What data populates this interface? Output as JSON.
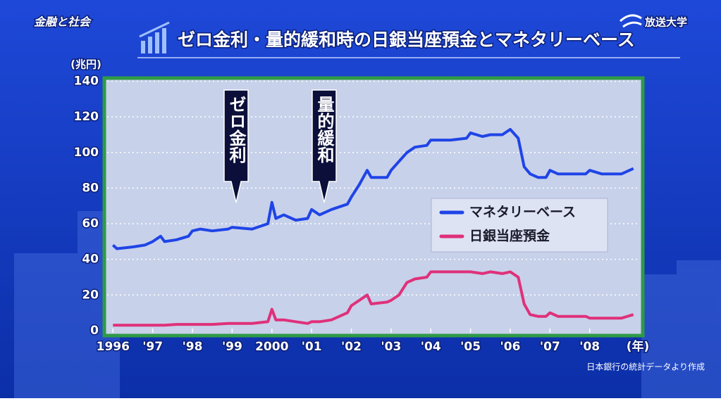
{
  "program": "金融と社会",
  "logo": "放送大学",
  "source": "日本銀行の統計データより作成",
  "chart_data": {
    "type": "line",
    "title": "ゼロ金利・量的緩和時の日銀当座預金とマネタリーベース",
    "y_label": "(兆円)",
    "x_label": "(年)",
    "annotations": [
      "ゼロ金利",
      "量的緩和"
    ],
    "x": [
      1996.0,
      1996.1,
      1996.5,
      1996.8,
      1997.0,
      1997.2,
      1997.3,
      1997.6,
      1997.9,
      1998.0,
      1998.2,
      1998.5,
      1998.9,
      1999.0,
      1999.5,
      1999.9,
      2000.0,
      2000.1,
      2000.3,
      2000.6,
      2000.9,
      2001.0,
      2001.2,
      2001.5,
      2001.9,
      2002.0,
      2002.2,
      2002.4,
      2002.5,
      2002.9,
      2003.0,
      2003.2,
      2003.4,
      2003.6,
      2003.9,
      2004.0,
      2004.5,
      2004.9,
      2005.0,
      2005.3,
      2005.5,
      2005.8,
      2006.0,
      2006.2,
      2006.35,
      2006.5,
      2006.7,
      2006.9,
      2007.0,
      2007.2,
      2007.5,
      2007.9,
      2008.0,
      2008.3,
      2008.8,
      2009.1
    ],
    "series": [
      {
        "name": "マネタリーベース",
        "color": "#1f44e6",
        "values": [
          48,
          46,
          47,
          48,
          50,
          53,
          50,
          51,
          53,
          56,
          57,
          56,
          57,
          58,
          57,
          60,
          72,
          63,
          65,
          62,
          63,
          68,
          65,
          68,
          71,
          75,
          82,
          90,
          86,
          86,
          90,
          95,
          100,
          103,
          104,
          107,
          107,
          108,
          111,
          109,
          110,
          110,
          113,
          108,
          92,
          88,
          86,
          86,
          90,
          88,
          88,
          88,
          90,
          88,
          88,
          91
        ]
      },
      {
        "name": "日銀当座預金",
        "color": "#e0307a",
        "values": [
          3,
          3,
          3,
          3,
          3,
          3,
          3,
          3.5,
          3.5,
          3.5,
          3.5,
          3.5,
          4,
          4,
          4,
          5,
          12,
          6,
          6,
          5,
          4,
          5,
          5,
          6,
          10,
          14,
          17,
          20,
          15,
          16,
          17,
          20,
          27,
          29,
          30,
          33,
          33,
          33,
          33,
          32,
          33,
          32,
          33,
          30,
          15,
          9,
          8,
          8,
          10,
          8,
          8,
          8,
          7,
          7,
          7,
          9
        ]
      }
    ],
    "xlim": [
      1995.8,
      2009.3
    ],
    "xticks": [
      1996,
      {
        "value": 1997,
        "label": "'97"
      },
      {
        "value": 1998,
        "label": "'98"
      },
      {
        "value": 1999,
        "label": "'99"
      },
      2000,
      {
        "value": 2001,
        "label": "'01"
      },
      {
        "value": 2002,
        "label": "'02"
      },
      {
        "value": 2003,
        "label": "'03"
      },
      {
        "value": 2004,
        "label": "'04"
      },
      {
        "value": 2005,
        "label": "'05"
      },
      {
        "value": 2006,
        "label": "'06"
      },
      {
        "value": 2007,
        "label": "'07"
      },
      {
        "value": 2008,
        "label": "'08"
      }
    ],
    "ylim": [
      -2,
      141
    ],
    "yticks": [
      0,
      20,
      40,
      60,
      80,
      100,
      120,
      140
    ],
    "grid": true
  }
}
